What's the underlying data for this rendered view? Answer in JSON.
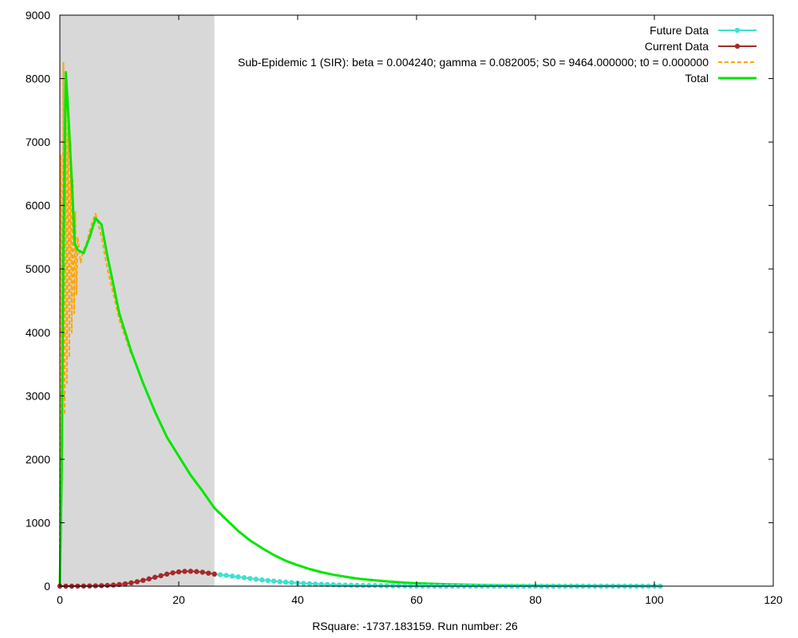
{
  "chart_data": {
    "type": "line",
    "title": "",
    "xlabel": "RSquare: -1737.183159. Run number: 26",
    "ylabel": "",
    "xlim": [
      0,
      120
    ],
    "ylim": [
      0,
      9000
    ],
    "x_ticks": [
      0,
      20,
      40,
      60,
      80,
      100,
      120
    ],
    "y_ticks": [
      0,
      1000,
      2000,
      3000,
      4000,
      5000,
      6000,
      7000,
      8000,
      9000
    ],
    "grid": false,
    "legend_position": "top-right",
    "shaded_region": {
      "x_start": 0,
      "x_end": 26,
      "color": "#d8d8d8"
    },
    "series": [
      {
        "name": "Future Data",
        "style": "line-points",
        "color": "#40e0d0",
        "x": [
          26,
          27,
          28,
          29,
          30,
          31,
          32,
          33,
          34,
          35,
          36,
          37,
          38,
          39,
          40,
          41,
          42,
          43,
          44,
          45,
          46,
          47,
          48,
          49,
          50,
          51,
          52,
          53,
          54,
          55,
          56,
          57,
          58,
          59,
          60,
          61,
          62,
          63,
          64,
          65,
          66,
          67,
          68,
          69,
          70,
          71,
          72,
          73,
          74,
          75,
          76,
          77,
          78,
          79,
          80,
          81,
          82,
          83,
          84,
          85,
          86,
          87,
          88,
          89,
          90,
          91,
          92,
          93,
          94,
          95,
          96,
          97,
          98,
          99,
          100,
          101
        ],
        "y": [
          190,
          180,
          170,
          158,
          146,
          134,
          122,
          110,
          99,
          89,
          80,
          71,
          63,
          56,
          50,
          44,
          39,
          34,
          30,
          26,
          23,
          20,
          17,
          15,
          13,
          11,
          10,
          9,
          8,
          7,
          6,
          5,
          4,
          4,
          3,
          3,
          3,
          2,
          2,
          2,
          2,
          1,
          1,
          1,
          1,
          1,
          1,
          1,
          1,
          1,
          0,
          0,
          0,
          0,
          0,
          0,
          0,
          0,
          0,
          0,
          0,
          0,
          0,
          0,
          0,
          0,
          0,
          0,
          0,
          0,
          0,
          0,
          0,
          0,
          0,
          0
        ]
      },
      {
        "name": "Current Data",
        "style": "line-points",
        "color": "#a52a2a",
        "x": [
          0,
          1,
          2,
          3,
          4,
          5,
          6,
          7,
          8,
          9,
          10,
          11,
          12,
          13,
          14,
          15,
          16,
          17,
          18,
          19,
          20,
          21,
          22,
          23,
          24,
          25,
          26
        ],
        "y": [
          0,
          0,
          0,
          1,
          2,
          3,
          5,
          8,
          12,
          18,
          26,
          37,
          52,
          70,
          92,
          115,
          140,
          165,
          190,
          210,
          225,
          233,
          235,
          230,
          220,
          205,
          190
        ]
      },
      {
        "name": "Sub-Epidemic 1 (SIR): beta = 0.004240; gamma = 0.082005; S0 = 9464.000000; t0 = 0.000000",
        "style": "dashed",
        "color": "#ffa500",
        "x": [
          0,
          0.2,
          0.4,
          0.6,
          0.8,
          1.0,
          1.2,
          1.4,
          1.6,
          1.8,
          2.0,
          2.2,
          2.4,
          2.6,
          2.8,
          3.0,
          3.5,
          4.0,
          4.5,
          5.0,
          5.5,
          6.0,
          6.5,
          7.0,
          8.0,
          9.0,
          10.0,
          12.0
        ],
        "y": [
          500,
          6800,
          2700,
          8250,
          2700,
          7900,
          3200,
          7600,
          3600,
          7000,
          4000,
          6400,
          4300,
          5900,
          4600,
          5500,
          5100,
          5300,
          5400,
          5600,
          5750,
          5870,
          5700,
          5500,
          5000,
          4600,
          4200,
          3650
        ]
      },
      {
        "name": "Total",
        "style": "line",
        "color": "#00e600",
        "x": [
          0,
          0.3,
          0.6,
          1.0,
          1.5,
          2.0,
          2.5,
          3.0,
          4.0,
          5.0,
          6.0,
          7.0,
          8.0,
          9.0,
          10,
          12,
          14,
          16,
          18,
          20,
          22,
          24,
          26,
          28,
          30,
          32,
          34,
          36,
          38,
          40,
          42,
          44,
          46,
          48,
          50,
          52,
          55,
          58,
          60,
          65,
          70,
          75,
          80,
          85,
          90,
          95,
          100,
          101
        ],
        "y": [
          0,
          1700,
          5300,
          8100,
          7300,
          6400,
          5400,
          5300,
          5250,
          5500,
          5800,
          5700,
          5200,
          4750,
          4300,
          3700,
          3200,
          2750,
          2350,
          2050,
          1750,
          1500,
          1230,
          1050,
          870,
          720,
          600,
          490,
          400,
          330,
          270,
          220,
          180,
          150,
          120,
          100,
          75,
          55,
          45,
          30,
          20,
          12,
          8,
          5,
          3,
          2,
          1,
          1
        ]
      }
    ]
  }
}
